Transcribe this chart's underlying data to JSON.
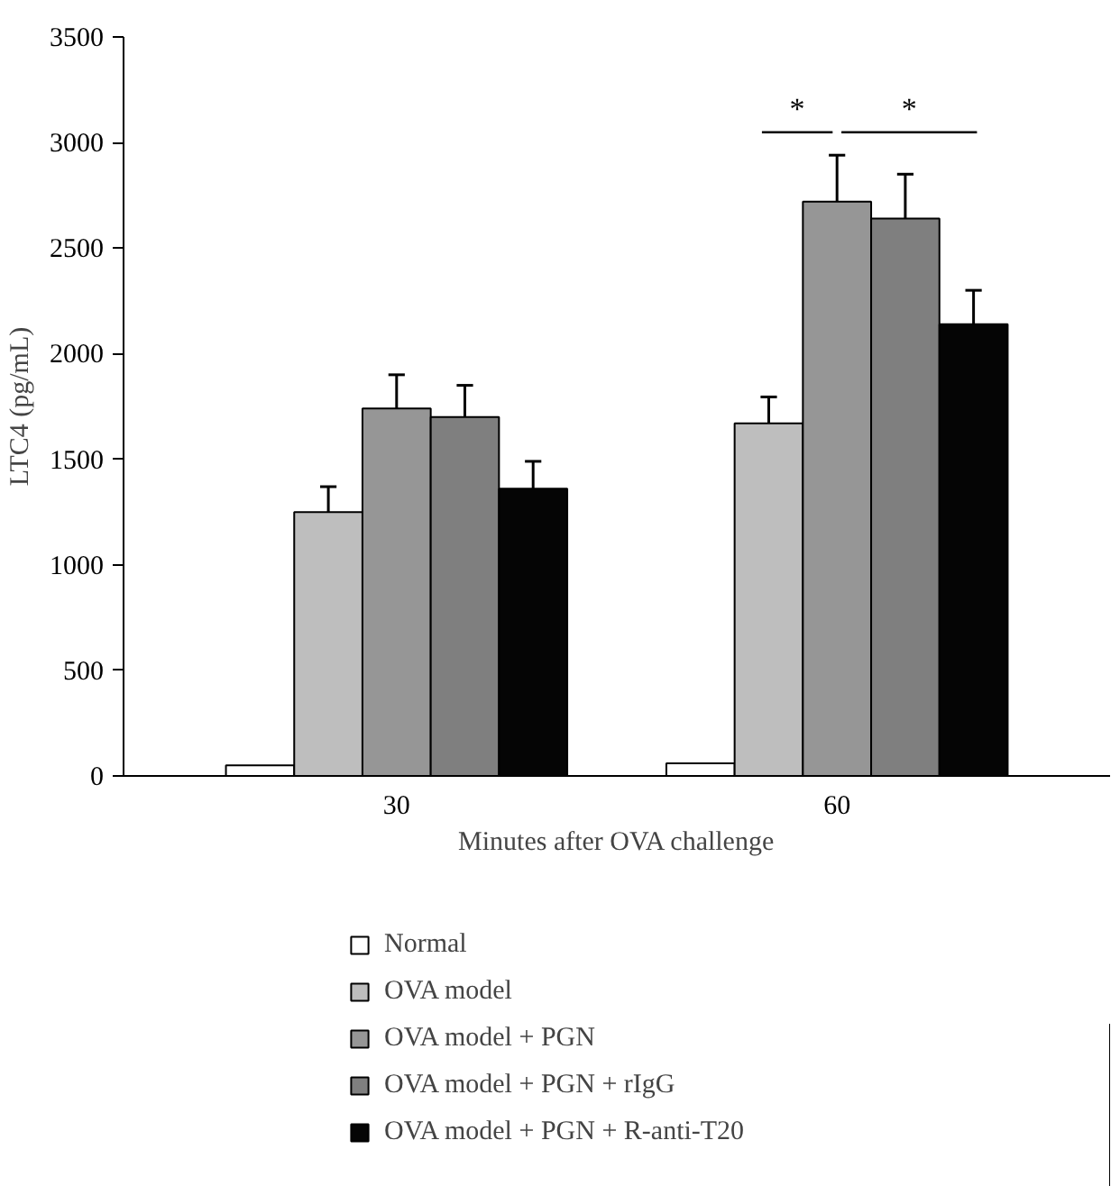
{
  "chart_data": {
    "type": "bar",
    "xlabel": "Minutes after OVA challenge",
    "ylabel": "LTC4 (pg/mL)",
    "categories": [
      "30",
      "60"
    ],
    "ylim": [
      0,
      3500
    ],
    "yticks": [
      0,
      500,
      1000,
      1500,
      2000,
      2500,
      3000,
      3500
    ],
    "grid": false,
    "legend": "bottom",
    "series": [
      {
        "name": "Normal",
        "color": "#ffffff",
        "values": [
          50,
          60
        ]
      },
      {
        "name": "OVA model",
        "color": "#bebebe",
        "values": [
          1250,
          1670
        ],
        "errors": [
          [
            1250,
            1370
          ],
          [
            1670,
            1795
          ]
        ]
      },
      {
        "name": "OVA model + PGN",
        "color": "#969696",
        "values": [
          1740,
          2720
        ],
        "errors": [
          [
            1740,
            1900
          ],
          [
            2720,
            2940
          ]
        ]
      },
      {
        "name": "OVA model + PGN + rIgG",
        "color": "#7f7f7f",
        "values": [
          1700,
          2640
        ],
        "errors": [
          [
            1700,
            1850
          ],
          [
            2640,
            2850
          ]
        ]
      },
      {
        "name": "OVA model + PGN + R-anti-T20",
        "color": "#050505",
        "values": [
          1360,
          2140
        ],
        "errors": [
          [
            1360,
            1490
          ],
          [
            2140,
            2300
          ]
        ]
      }
    ],
    "annotations": [
      "*",
      "*"
    ]
  }
}
